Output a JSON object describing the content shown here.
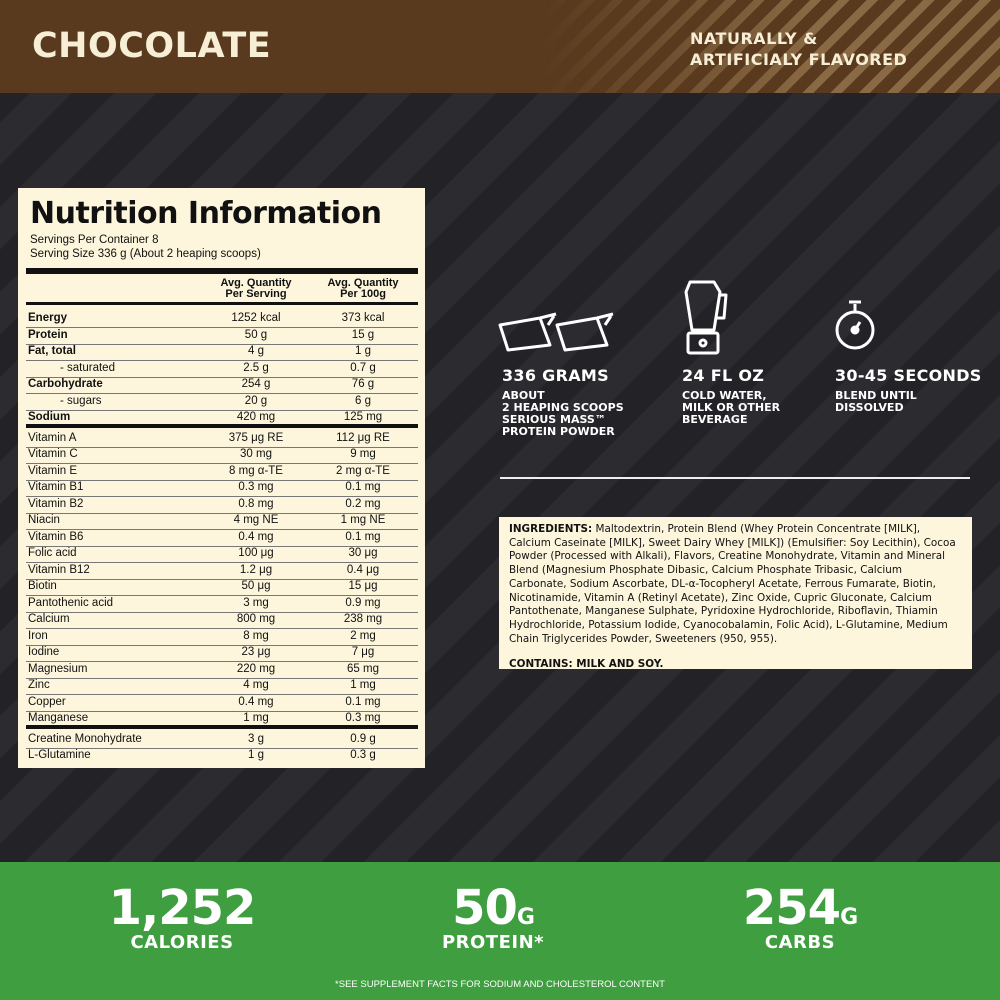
{
  "header": {
    "flavor": "CHOCOLATE",
    "note": [
      "NATURALLY &",
      "ARTIFICIALY FLAVORED"
    ]
  },
  "nutrition": {
    "title": "Nutrition Information",
    "servings_per_container": "Servings Per Container 8",
    "serving_size": "Serving Size 336 g (About 2 heaping scoops)",
    "columns": [
      [
        "Avg. Quantity",
        "Per Serving"
      ],
      [
        "Avg. Quantity",
        "Per 100g"
      ]
    ],
    "groups": [
      [
        [
          "Energy",
          "1252 kcal",
          "373 kcal"
        ],
        [
          "Protein",
          "50 g",
          "15 g"
        ],
        [
          "Fat, total",
          "4 g",
          "1 g"
        ],
        [
          "- saturated",
          "2.5 g",
          "0.7 g"
        ],
        [
          "Carbohydrate",
          "254 g",
          "76 g"
        ],
        [
          "- sugars",
          "20 g",
          "6 g"
        ],
        [
          "Sodium",
          "420 mg",
          "125 mg"
        ]
      ],
      [
        [
          "Vitamin A",
          "375 μg RE",
          "112 μg RE"
        ],
        [
          "Vitamin C",
          "30 mg",
          "9 mg"
        ],
        [
          "Vitamin E",
          "8 mg α-TE",
          "2 mg α-TE"
        ],
        [
          "Vitamin B1",
          "0.3 mg",
          "0.1 mg"
        ],
        [
          "Vitamin B2",
          "0.8 mg",
          "0.2 mg"
        ],
        [
          "Niacin",
          "4 mg NE",
          "1 mg NE"
        ],
        [
          "Vitamin B6",
          "0.4 mg",
          "0.1 mg"
        ],
        [
          "Folic acid",
          "100 μg",
          "30 μg"
        ],
        [
          "Vitamin B12",
          "1.2 μg",
          "0.4 μg"
        ],
        [
          "Biotin",
          "50 μg",
          "15 μg"
        ],
        [
          "Pantothenic acid",
          "3 mg",
          "0.9 mg"
        ],
        [
          "Calcium",
          "800 mg",
          "238 mg"
        ],
        [
          "Iron",
          "8 mg",
          "2 mg"
        ],
        [
          "Iodine",
          "23 μg",
          "7 μg"
        ],
        [
          "Magnesium",
          "220 mg",
          "65 mg"
        ],
        [
          "Zinc",
          "4 mg",
          "1 mg"
        ],
        [
          "Copper",
          "0.4 mg",
          "0.1 mg"
        ],
        [
          "Manganese",
          "1 mg",
          "0.3 mg"
        ]
      ],
      [
        [
          "Creatine Monohydrate",
          "3 g",
          "0.9 g"
        ],
        [
          "L-Glutamine",
          "1 g",
          "0.3 g"
        ]
      ]
    ]
  },
  "usage": [
    {
      "title": "336 GRAMS",
      "lines": [
        "ABOUT",
        "2 HEAPING SCOOPS",
        "SERIOUS MASS™",
        "PROTEIN POWDER"
      ]
    },
    {
      "title": "24 FL OZ",
      "lines": [
        "COLD WATER,",
        "MILK OR OTHER",
        "BEVERAGE"
      ]
    },
    {
      "title": "30-45 SECONDS",
      "lines": [
        "BLEND UNTIL",
        "DISSOLVED"
      ]
    }
  ],
  "ingredients": {
    "label": "INGREDIENTS:",
    "text": "Maltodextrin, Protein Blend (Whey Protein Concentrate [MILK], Calcium Caseinate [MILK], Sweet Dairy Whey [MILK]) (Emulsifier: Soy Lecithin), Cocoa Powder (Processed with Alkali), Flavors, Creatine Monohydrate, Vitamin and Mineral Blend (Magnesium Phosphate Dibasic, Calcium Phosphate Tribasic, Calcium Carbonate, Sodium Ascorbate, DL-α-Tocopheryl Acetate, Ferrous Fumarate, Biotin, Nicotinamide, Vitamin A (Retinyl Acetate), Zinc Oxide, Cupric Gluconate, Calcium Pantothenate, Manganese Sulphate, Pyridoxine Hydrochloride, Riboflavin, Thiamin Hydrochloride, Potassium Iodide, Cyanocobalamin, Folic Acid), L-Glutamine, Medium Chain Triglycerides Powder, Sweeteners (950, 955).",
    "contains": "CONTAINS: MILK AND SOY."
  },
  "stats": [
    {
      "value": "1,252",
      "label": "CALORIES"
    },
    {
      "value": "50",
      "unit": "G",
      "label": "PROTEIN*"
    },
    {
      "value": "254",
      "unit": "G",
      "label": "CARBS"
    }
  ],
  "footnote": "*SEE SUPPLEMENT FACTS FOR SODIUM AND CHOLESTEROL CONTENT"
}
